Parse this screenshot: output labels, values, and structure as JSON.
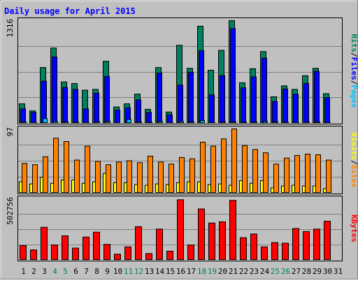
{
  "colors": {
    "background": "#c0c0c0",
    "frame_dark": "#808080",
    "frame_light": "#ffffff",
    "title": "#0000ff",
    "hits": "#00805c",
    "files": "#0000ff",
    "pages": "#00c0ff",
    "visits": "#ffff00",
    "sites": "#ff8000",
    "kbytes": "#ff0000",
    "grid": "#808080",
    "day_normal": "#000000",
    "day_weekend": "#00805c",
    "separator": "#000000"
  },
  "chart_data": {
    "type": "bar",
    "title": "Daily usage for April 2015",
    "categories": [
      "1",
      "2",
      "3",
      "4",
      "5",
      "6",
      "7",
      "8",
      "9",
      "10",
      "11",
      "12",
      "13",
      "14",
      "15",
      "16",
      "17",
      "18",
      "19",
      "20",
      "21",
      "22",
      "23",
      "24",
      "25",
      "26",
      "27",
      "28",
      "29",
      "30",
      "31"
    ],
    "weekend_days": [
      "4",
      "5",
      "11",
      "12",
      "18",
      "19",
      "25",
      "26"
    ],
    "panels": [
      {
        "axis_max_label": "1316",
        "axis_max": 1316,
        "ylabel_parts": [
          {
            "text": "Hits",
            "series": "hits"
          },
          {
            "text": "/",
            "series": null
          },
          {
            "text": "Files",
            "series": "files"
          },
          {
            "text": "/",
            "series": null
          },
          {
            "text": "Pages",
            "series": "pages"
          }
        ],
        "series": [
          {
            "name": "Hits",
            "key": "hits",
            "values": [
              250,
              160,
              715,
              965,
              530,
              510,
              425,
              435,
              795,
              210,
              250,
              375,
              180,
              715,
              145,
              1000,
              705,
              1245,
              680,
              935,
              1316,
              520,
              700,
              920,
              340,
              480,
              435,
              610,
              705,
              380,
              0
            ]
          },
          {
            "name": "Files",
            "key": "files",
            "values": [
              185,
              140,
              540,
              850,
              460,
              435,
              185,
              385,
              600,
              170,
              200,
              300,
              140,
              645,
              110,
              490,
              655,
              930,
              365,
              610,
              1215,
              455,
              595,
              835,
              280,
              440,
              375,
              510,
              665,
              330,
              0
            ]
          },
          {
            "name": "Pages",
            "key": "pages",
            "values": [
              20,
              10,
              60,
              25,
              20,
              15,
              10,
              20,
              25,
              8,
              50,
              20,
              15,
              25,
              10,
              25,
              20,
              35,
              10,
              15,
              20,
              15,
              15,
              25,
              20,
              15,
              10,
              15,
              20,
              10,
              0
            ]
          }
        ]
      },
      {
        "axis_max_label": "97",
        "axis_max": 97,
        "ylabel_parts": [
          {
            "text": "Visits",
            "series": "visits"
          },
          {
            "text": "/",
            "series": null
          },
          {
            "text": "Sites",
            "series": "sites"
          }
        ],
        "series": [
          {
            "name": "Visits",
            "key": "visits",
            "values": [
              17,
              14,
              24,
              15,
              20,
              20,
              15,
              17,
              30,
              16,
              16,
              13,
              12,
              14,
              13,
              16,
              17,
              17,
              13,
              14,
              12,
              19,
              15,
              19,
              8,
              11,
              12,
              11,
              11,
              7,
              0
            ]
          },
          {
            "name": "Sites",
            "key": "sites",
            "values": [
              45,
              43,
              55,
              83,
              78,
              50,
              71,
              48,
              43,
              47,
              49,
              46,
              56,
              47,
              44,
              54,
              52,
              77,
              71,
              82,
              97,
              72,
              66,
              61,
              44,
              53,
              57,
              59,
              58,
              50,
              0
            ]
          }
        ]
      },
      {
        "axis_max_label": "502756",
        "axis_max": 502756,
        "ylabel_parts": [
          {
            "text": "KBytes",
            "series": "kbytes"
          }
        ],
        "series": [
          {
            "name": "KBytes",
            "key": "kbytes",
            "values": [
              120000,
              85000,
              270000,
              125000,
              200000,
              100000,
              190000,
              230000,
              130000,
              50000,
              110000,
              275000,
              55000,
              255000,
              75000,
              495000,
              125000,
              420000,
              305000,
              315000,
              490000,
              185000,
              215000,
              110000,
              145000,
              140000,
              260000,
              235000,
              255000,
              320000,
              0
            ]
          }
        ]
      }
    ]
  }
}
